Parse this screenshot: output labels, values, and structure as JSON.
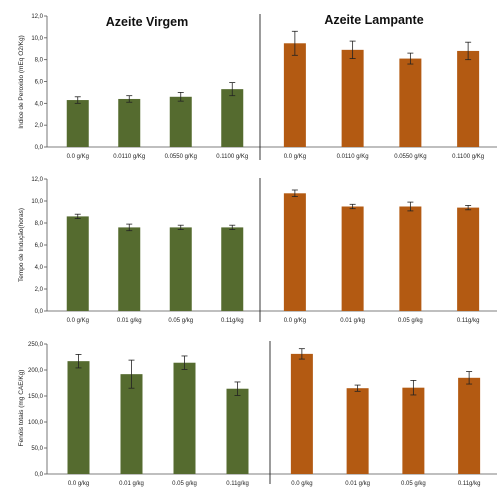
{
  "colors": {
    "virgem": "#556b2f",
    "lampante": "#b35a12"
  },
  "chart_data": [
    {
      "type": "bar",
      "titles": [
        "Azeite Virgem",
        "Azeite Lampante"
      ],
      "ylabel": "Indice de Peroxido (mEq O2/Kg)",
      "ylim": [
        0,
        12
      ],
      "yticks": [
        "0,0",
        "2,0",
        "4,0",
        "6,0",
        "8,0",
        "10,0",
        "12,0"
      ],
      "groups": [
        {
          "name": "Azeite Virgem",
          "categories": [
            "0.0 g/Kg",
            "0.0110 g/Kg",
            "0.0550 g/Kg",
            "0.1100 g/Kg"
          ],
          "values": [
            4.3,
            4.4,
            4.6,
            5.3
          ],
          "errors": [
            0.3,
            0.3,
            0.4,
            0.6
          ]
        },
        {
          "name": "Azeite Lampante",
          "categories": [
            "0.0 g/Kg",
            "0.0110 g/Kg",
            "0.0550 g/Kg",
            "0.1100 g/Kg"
          ],
          "values": [
            9.5,
            8.9,
            8.1,
            8.8
          ],
          "errors": [
            1.1,
            0.8,
            0.5,
            0.8
          ]
        }
      ]
    },
    {
      "type": "bar",
      "ylabel": "Tempo de Indução(horas)",
      "ylim": [
        0,
        12
      ],
      "yticks": [
        "0,0",
        "2,0",
        "4,0",
        "6,0",
        "8,0",
        "10,0",
        "12,0"
      ],
      "groups": [
        {
          "name": "Azeite Virgem",
          "categories": [
            "0.0 g/Kg",
            "0.01 g/kg",
            "0.05 g/kg",
            "0.11g/kg"
          ],
          "values": [
            8.6,
            7.6,
            7.6,
            7.6
          ],
          "errors": [
            0.2,
            0.3,
            0.2,
            0.2
          ]
        },
        {
          "name": "Azeite Lampante",
          "categories": [
            "0.0 g/Kg",
            "0.01 g/kg",
            "0.05 g/kg",
            "0.11g/kg"
          ],
          "values": [
            10.7,
            9.5,
            9.5,
            9.4
          ],
          "errors": [
            0.3,
            0.2,
            0.4,
            0.2
          ]
        }
      ]
    },
    {
      "type": "bar",
      "ylabel": "Fenóis totais (mg CAE/Kg)",
      "ylim": [
        0,
        250
      ],
      "yticks": [
        "0,0",
        "50,0",
        "100,0",
        "150,0",
        "200,0",
        "250,0"
      ],
      "groups": [
        {
          "name": "Azeite Virgem",
          "categories": [
            "0.0 g/kg",
            "0.01 g/kg",
            "0.05 g/kg",
            "0.11g/kg"
          ],
          "values": [
            217,
            192,
            214,
            164
          ],
          "errors": [
            13,
            27,
            13,
            13
          ]
        },
        {
          "name": "Azeite Lampante",
          "categories": [
            "0.0 g/kg",
            "0.01 g/kg",
            "0.05 g/kg",
            "0.11g/kg"
          ],
          "values": [
            231,
            165,
            166,
            185
          ],
          "errors": [
            10,
            6,
            14,
            12
          ]
        }
      ]
    }
  ]
}
